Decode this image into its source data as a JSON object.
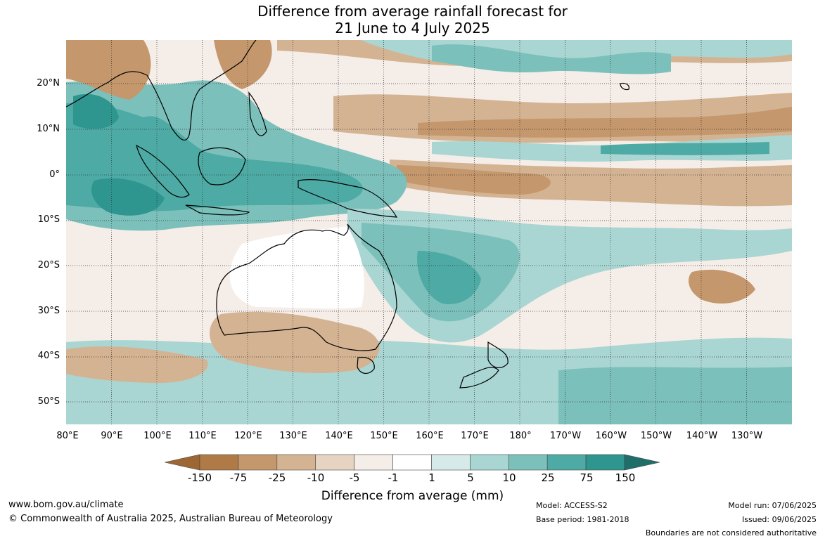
{
  "title": {
    "line1": "Difference from average rainfall forecast for",
    "line2": "21 June to 4 July 2025"
  },
  "map": {
    "lat_labels": [
      "20°N",
      "10°N",
      "0°",
      "10°S",
      "20°S",
      "30°S",
      "40°S",
      "50°S"
    ],
    "lon_labels": [
      "80°E",
      "90°E",
      "100°E",
      "110°E",
      "120°E",
      "130°E",
      "140°E",
      "150°E",
      "160°E",
      "170°E",
      "180°",
      "170°W",
      "160°W",
      "150°W",
      "140°W",
      "130°W"
    ],
    "gridlines": "dotted"
  },
  "colorbar": {
    "ticks": [
      "-150",
      "-75",
      "-25",
      "-10",
      "-5",
      "-1",
      "1",
      "5",
      "10",
      "25",
      "75",
      "150"
    ],
    "colors": [
      "#9e6632",
      "#b07a47",
      "#c4976c",
      "#d4b393",
      "#e6d3c2",
      "#f5ede8",
      "#ffffff",
      "#d6ebe9",
      "#a9d6d2",
      "#7cc0bb",
      "#4eaaa4",
      "#2e958f",
      "#1f6e6a"
    ],
    "label": "Difference from average (mm)"
  },
  "footer": {
    "website": "www.bom.gov.au/climate",
    "copyright": "© Commonwealth of Australia 2025, Australian Bureau of Meteorology",
    "model": "Model: ACCESS-S2",
    "base_period": "Base period: 1981-2018",
    "model_run": "Model run: 07/06/2025",
    "issued": "Issued: 09/06/2025",
    "boundaries_note": "Boundaries are not considered authoritative"
  }
}
